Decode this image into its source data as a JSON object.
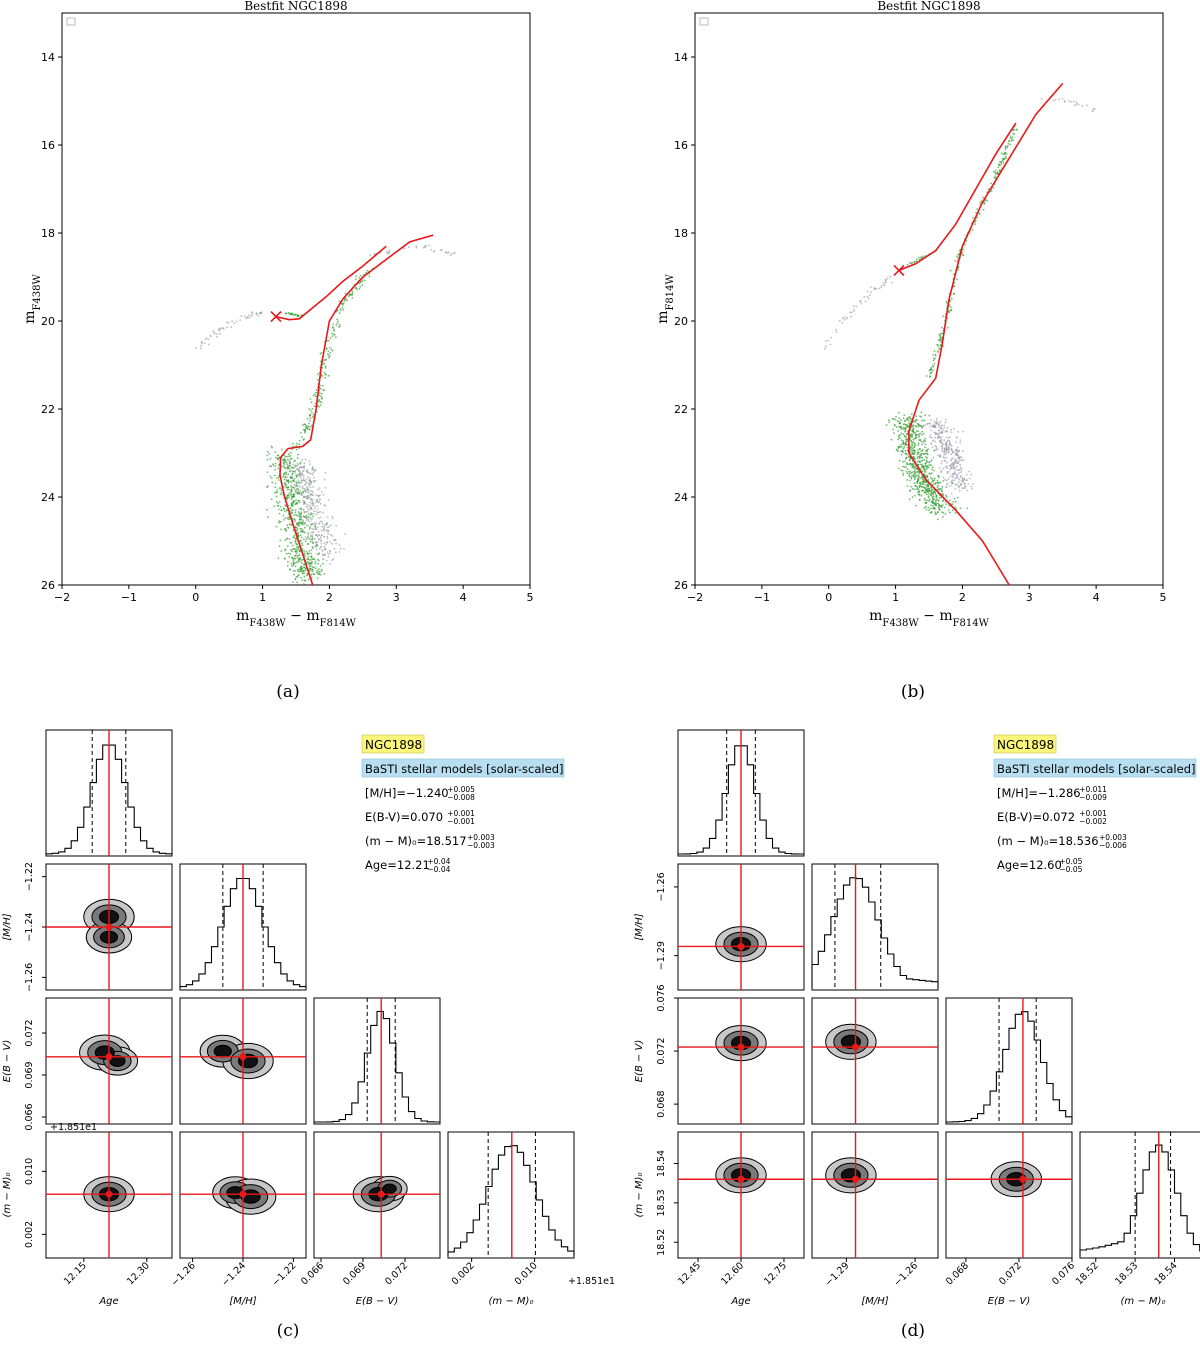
{
  "colors": {
    "model": "#e8191b",
    "green": "#2a9a28",
    "grey": "#9a9aa6",
    "yellow_box": "#fbf67a",
    "blue_box": "#b7dff1",
    "contour_outer": "#c8c8c8",
    "contour_mid": "#7a7a7a",
    "contour_inner": "#111111"
  },
  "panel_labels": [
    "(a)",
    "(b)",
    "(c)",
    "(d)"
  ],
  "chart_data": [
    {
      "id": "a",
      "type": "scatter",
      "title": "Bestfit NGC1898",
      "xlabel": "m_F438W - m_F814W",
      "ylabel": "m_F438W",
      "xlim": [
        -2,
        5
      ],
      "ylim": [
        26,
        13
      ],
      "y_inverted": true,
      "xticks": [
        -2,
        -1,
        0,
        1,
        2,
        3,
        4,
        5
      ],
      "yticks": [
        14,
        16,
        18,
        20,
        22,
        24,
        26
      ],
      "isochrone_branches": [
        [
          [
            1.75,
            26.0
          ],
          [
            1.6,
            25.3
          ],
          [
            1.45,
            24.6
          ],
          [
            1.33,
            24.0
          ],
          [
            1.26,
            23.5
          ],
          [
            1.27,
            23.1
          ],
          [
            1.38,
            22.9
          ],
          [
            1.6,
            22.85
          ],
          [
            1.72,
            22.7
          ],
          [
            1.8,
            22.0
          ],
          [
            1.88,
            21.0
          ],
          [
            2.0,
            20.0
          ],
          [
            2.2,
            19.5
          ],
          [
            2.5,
            19.0
          ],
          [
            2.85,
            18.6
          ],
          [
            3.2,
            18.2
          ],
          [
            3.55,
            18.05
          ]
        ],
        [
          [
            1.2,
            19.9
          ],
          [
            1.4,
            19.97
          ],
          [
            1.55,
            19.95
          ],
          [
            1.75,
            19.7
          ],
          [
            1.95,
            19.45
          ],
          [
            2.2,
            19.1
          ],
          [
            2.5,
            18.75
          ],
          [
            2.85,
            18.3
          ]
        ]
      ],
      "isochrone_end_marker": [
        1.2,
        19.9
      ],
      "star_groups": [
        {
          "label": "ms-fitted",
          "color": "green",
          "spine": [
            [
              1.3,
              23.0
            ],
            [
              1.45,
              24.0
            ],
            [
              1.55,
              25.0
            ],
            [
              1.7,
              25.8
            ]
          ],
          "spread": 0.28,
          "count": 650
        },
        {
          "label": "sgb-rgb-fitted",
          "color": "green",
          "spine": [
            [
              1.5,
              22.9
            ],
            [
              1.8,
              22.0
            ],
            [
              1.95,
              20.8
            ],
            [
              2.2,
              19.6
            ],
            [
              2.6,
              18.8
            ]
          ],
          "spread": 0.08,
          "count": 220
        },
        {
          "label": "hb-fitted",
          "color": "green",
          "spine": [
            [
              1.3,
              19.8
            ],
            [
              1.6,
              19.9
            ]
          ],
          "spread": 0.05,
          "count": 25
        },
        {
          "label": "ms-rejected",
          "color": "grey",
          "spine": [
            [
              1.55,
              23.2
            ],
            [
              1.75,
              24.2
            ],
            [
              1.95,
              25.4
            ]
          ],
          "spread": 0.22,
          "count": 320
        },
        {
          "label": "blue-hb",
          "color": "grey",
          "spine": [
            [
              0.05,
              20.6
            ],
            [
              0.35,
              20.2
            ],
            [
              0.8,
              19.85
            ],
            [
              1.0,
              19.8
            ]
          ],
          "spread": 0.07,
          "count": 55
        },
        {
          "label": "agb-field",
          "color": "grey",
          "spine": [
            [
              2.6,
              18.5
            ],
            [
              3.4,
              18.3
            ],
            [
              3.9,
              18.5
            ]
          ],
          "spread": 0.08,
          "count": 35
        }
      ]
    },
    {
      "id": "b",
      "type": "scatter",
      "title": "Bestfit NGC1898",
      "xlabel": "m_F438W - m_F814W",
      "ylabel": "m_F814W",
      "xlim": [
        -2,
        5
      ],
      "ylim": [
        26,
        13
      ],
      "y_inverted": true,
      "xticks": [
        -2,
        -1,
        0,
        1,
        2,
        3,
        4,
        5
      ],
      "yticks": [
        14,
        16,
        18,
        20,
        22,
        24,
        26
      ],
      "isochrone_branches": [
        [
          [
            2.7,
            26.0
          ],
          [
            2.3,
            25.0
          ],
          [
            1.9,
            24.3
          ],
          [
            1.45,
            23.6
          ],
          [
            1.2,
            23.0
          ],
          [
            1.2,
            22.5
          ],
          [
            1.35,
            21.8
          ],
          [
            1.6,
            21.3
          ],
          [
            1.7,
            20.5
          ],
          [
            1.8,
            19.5
          ],
          [
            2.0,
            18.3
          ],
          [
            2.3,
            17.3
          ],
          [
            2.7,
            16.3
          ],
          [
            3.1,
            15.3
          ],
          [
            3.5,
            14.6
          ]
        ],
        [
          [
            1.05,
            18.85
          ],
          [
            1.3,
            18.7
          ],
          [
            1.6,
            18.4
          ],
          [
            1.9,
            17.8
          ],
          [
            2.2,
            17.0
          ],
          [
            2.5,
            16.2
          ],
          [
            2.8,
            15.5
          ]
        ]
      ],
      "isochrone_end_marker": [
        1.05,
        18.85
      ],
      "star_groups": [
        {
          "label": "ms-fitted",
          "color": "green",
          "spine": [
            [
              1.2,
              22.2
            ],
            [
              1.25,
              23.0
            ],
            [
              1.45,
              23.7
            ],
            [
              1.7,
              24.3
            ]
          ],
          "spread": 0.25,
          "count": 700
        },
        {
          "label": "rgb-fitted",
          "color": "green",
          "spine": [
            [
              1.5,
              21.3
            ],
            [
              1.75,
              20.0
            ],
            [
              2.0,
              18.3
            ],
            [
              2.5,
              16.7
            ],
            [
              2.8,
              15.6
            ]
          ],
          "spread": 0.05,
          "count": 230
        },
        {
          "label": "hb-fitted",
          "color": "green",
          "spine": [
            [
              1.2,
              18.7
            ],
            [
              1.5,
              18.5
            ]
          ],
          "spread": 0.05,
          "count": 20
        },
        {
          "label": "ms-rejected",
          "color": "grey",
          "spine": [
            [
              1.6,
              22.3
            ],
            [
              1.8,
              23.0
            ],
            [
              2.0,
              23.8
            ]
          ],
          "spread": 0.2,
          "count": 320
        },
        {
          "label": "blue-hb",
          "color": "grey",
          "spine": [
            [
              -0.05,
              20.6
            ],
            [
              0.2,
              20.0
            ],
            [
              0.6,
              19.4
            ],
            [
              0.95,
              19.0
            ]
          ],
          "spread": 0.07,
          "count": 50
        },
        {
          "label": "agb-field",
          "color": "grey",
          "spine": [
            [
              3.2,
              14.9
            ],
            [
              3.6,
              15.0
            ],
            [
              4.0,
              15.2
            ]
          ],
          "spread": 0.08,
          "count": 20
        }
      ]
    },
    {
      "id": "c",
      "type": "corner",
      "cluster": "NGC1898",
      "model": "BaSTI stellar models [solar-scaled]",
      "param_lines": [
        "[M/H]=−1.240",
        "E(B-V)=0.070",
        "(m − M)₀=18.517",
        "Age=12.21"
      ],
      "param_errors": [
        [
          "+0.005",
          "−0.008"
        ],
        [
          "+0.001",
          "−0.001"
        ],
        [
          "+0.003",
          "−0.003"
        ],
        [
          "+0.04",
          "−0.04"
        ]
      ],
      "labels": [
        "Age",
        "[M/H]",
        "E(B − V)",
        "(m − M)₀"
      ],
      "best": [
        12.21,
        -1.24,
        0.0703,
        0.0071
      ],
      "ranges": [
        [
          12.06,
          12.36
        ],
        [
          -1.265,
          -1.215
        ],
        [
          0.0655,
          0.0745
        ],
        [
          -0.001,
          0.015
        ]
      ],
      "tick_values": [
        [
          12.15,
          12.3
        ],
        [
          -1.26,
          -1.24,
          -1.22
        ],
        [
          0.066,
          0.069,
          0.072
        ],
        [
          0.002,
          0.01
        ]
      ],
      "tick_labels": [
        [
          "12.15",
          "12.30"
        ],
        [
          "−1.26",
          "−1.24",
          "−1.22"
        ],
        [
          "0.066",
          "0.069",
          "0.072"
        ],
        [
          "0.002",
          "0.010"
        ]
      ],
      "offset_text": "+1.851e1",
      "hist_quantiles": [
        [
          12.17,
          12.25
        ],
        [
          -1.248,
          -1.232
        ],
        [
          0.0693,
          0.0713
        ],
        [
          0.0041,
          0.0101
        ]
      ],
      "blobs": {
        "1,0": [
          [
            12.21,
            -1.236,
            1.0
          ],
          [
            12.21,
            -1.244,
            0.9
          ]
        ],
        "2,0": [
          [
            12.2,
            0.0706,
            1.0
          ],
          [
            12.23,
            0.07,
            0.8
          ]
        ],
        "2,1": [
          [
            -1.248,
            0.0707,
            0.9
          ],
          [
            -1.238,
            0.07,
            1.0
          ]
        ],
        "3,0": [
          [
            12.21,
            0.0071,
            1.0
          ]
        ],
        "3,1": [
          [
            -1.243,
            0.0073,
            0.9
          ],
          [
            -1.237,
            0.0068,
            1.0
          ]
        ],
        "3,2": [
          [
            0.0701,
            0.0071,
            1.0
          ],
          [
            0.0709,
            0.0078,
            0.7
          ]
        ]
      }
    },
    {
      "id": "d",
      "type": "corner",
      "cluster": "NGC1898",
      "model": "BaSTI stellar models [solar-scaled]",
      "param_lines": [
        "[M/H]=−1.286",
        "E(B-V)=0.072",
        "(m − M)₀=18.536",
        "Age=12.60"
      ],
      "param_errors": [
        [
          "+0.011",
          "−0.009"
        ],
        [
          "+0.001",
          "−0.002"
        ],
        [
          "+0.003",
          "−0.006"
        ],
        [
          "+0.05",
          "−0.05"
        ]
      ],
      "labels": [
        "Age",
        "[M/H]",
        "E(B − V)",
        "(m − M)₀"
      ],
      "best": [
        12.6,
        -1.286,
        0.0723,
        18.536
      ],
      "ranges": [
        [
          12.38,
          12.82
        ],
        [
          -1.305,
          -1.25
        ],
        [
          0.0665,
          0.076
        ],
        [
          18.516,
          18.548
        ]
      ],
      "tick_values": [
        [
          12.45,
          12.6,
          12.75
        ],
        [
          -1.29,
          -1.26
        ],
        [
          0.068,
          0.072,
          0.076
        ],
        [
          18.52,
          18.53,
          18.54
        ]
      ],
      "tick_labels": [
        [
          "12.45",
          "12.60",
          "12.75"
        ],
        [
          "−1.29",
          "−1.26"
        ],
        [
          "0.068",
          "0.072",
          "0.076"
        ],
        [
          "18.52",
          "18.53",
          "18.54"
        ]
      ],
      "offset_text": "",
      "hist_quantiles": [
        [
          12.55,
          12.65
        ],
        [
          -1.295,
          -1.275
        ],
        [
          0.0705,
          0.0733
        ],
        [
          18.53,
          18.539
        ]
      ],
      "blobs": {
        "1,0": [
          [
            12.6,
            -1.285,
            1.0
          ]
        ],
        "2,0": [
          [
            12.6,
            0.0726,
            1.0
          ]
        ],
        "2,1": [
          [
            -1.288,
            0.0727,
            1.0
          ]
        ],
        "3,0": [
          [
            12.6,
            18.537,
            1.0
          ]
        ],
        "3,1": [
          [
            -1.288,
            18.537,
            1.0
          ]
        ],
        "3,2": [
          [
            0.0718,
            18.536,
            1.0
          ]
        ]
      }
    }
  ]
}
